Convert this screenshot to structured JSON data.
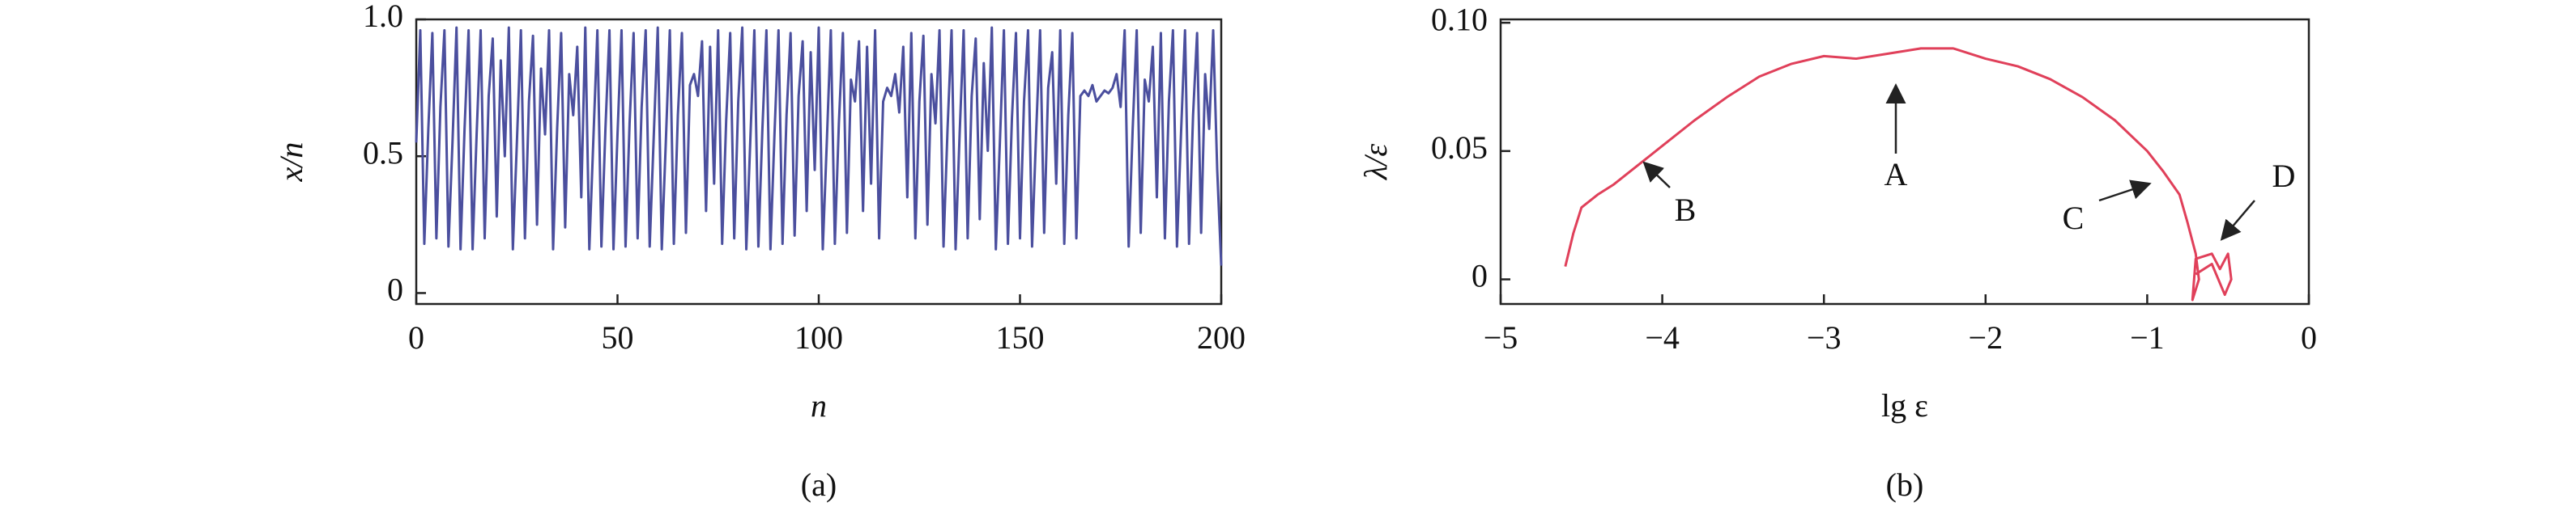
{
  "chart_data": [
    {
      "type": "line",
      "caption": "(a)",
      "xlabel": "n",
      "ylabel": "x/n",
      "color": "#4b4f9e",
      "xlim": [
        0,
        200
      ],
      "ylim": [
        -0.04,
        1.0
      ],
      "xticks": [
        0,
        50,
        100,
        150,
        200
      ],
      "yticks": [
        0,
        0.5,
        {
          "value": 1,
          "label": "1.0"
        }
      ],
      "x": [
        0,
        1,
        2,
        3,
        4,
        5,
        6,
        7,
        8,
        9,
        10,
        11,
        12,
        13,
        14,
        15,
        16,
        17,
        18,
        19,
        20,
        21,
        22,
        23,
        24,
        25,
        26,
        27,
        28,
        29,
        30,
        31,
        32,
        33,
        34,
        35,
        36,
        37,
        38,
        39,
        40,
        41,
        42,
        43,
        44,
        45,
        46,
        47,
        48,
        49,
        50,
        51,
        52,
        53,
        54,
        55,
        56,
        57,
        58,
        59,
        60,
        61,
        62,
        63,
        64,
        65,
        66,
        67,
        68,
        69,
        70,
        71,
        72,
        73,
        74,
        75,
        76,
        77,
        78,
        79,
        80,
        81,
        82,
        83,
        84,
        85,
        86,
        87,
        88,
        89,
        90,
        91,
        92,
        93,
        94,
        95,
        96,
        97,
        98,
        99,
        100,
        101,
        102,
        103,
        104,
        105,
        106,
        107,
        108,
        109,
        110,
        111,
        112,
        113,
        114,
        115,
        116,
        117,
        118,
        119,
        120,
        121,
        122,
        123,
        124,
        125,
        126,
        127,
        128,
        129,
        130,
        131,
        132,
        133,
        134,
        135,
        136,
        137,
        138,
        139,
        140,
        141,
        142,
        143,
        144,
        145,
        146,
        147,
        148,
        149,
        150,
        151,
        152,
        153,
        154,
        155,
        156,
        157,
        158,
        159,
        160,
        161,
        162,
        163,
        164,
        165,
        166,
        167,
        168,
        169,
        170,
        171,
        172,
        173,
        174,
        175,
        176,
        177,
        178,
        179,
        180,
        181,
        182,
        183,
        184,
        185,
        186,
        187,
        188,
        189,
        190,
        191,
        192,
        193,
        194,
        195,
        196,
        197,
        198,
        199,
        200
      ],
      "values": [
        0.55,
        0.96,
        0.18,
        0.6,
        0.95,
        0.2,
        0.68,
        0.96,
        0.17,
        0.55,
        0.97,
        0.16,
        0.6,
        0.96,
        0.16,
        0.58,
        0.96,
        0.2,
        0.72,
        0.93,
        0.28,
        0.85,
        0.5,
        0.97,
        0.16,
        0.55,
        0.96,
        0.2,
        0.7,
        0.94,
        0.25,
        0.82,
        0.58,
        0.96,
        0.16,
        0.6,
        0.95,
        0.24,
        0.8,
        0.65,
        0.9,
        0.35,
        0.97,
        0.16,
        0.56,
        0.96,
        0.17,
        0.6,
        0.96,
        0.16,
        0.58,
        0.96,
        0.17,
        0.62,
        0.95,
        0.2,
        0.68,
        0.96,
        0.17,
        0.57,
        0.97,
        0.16,
        0.55,
        0.96,
        0.18,
        0.65,
        0.95,
        0.22,
        0.76,
        0.8,
        0.72,
        0.92,
        0.3,
        0.9,
        0.4,
        0.96,
        0.18,
        0.63,
        0.95,
        0.2,
        0.7,
        0.97,
        0.16,
        0.56,
        0.96,
        0.17,
        0.6,
        0.96,
        0.16,
        0.58,
        0.96,
        0.18,
        0.65,
        0.95,
        0.21,
        0.72,
        0.92,
        0.3,
        0.88,
        0.45,
        0.97,
        0.16,
        0.55,
        0.96,
        0.18,
        0.62,
        0.95,
        0.22,
        0.78,
        0.7,
        0.92,
        0.3,
        0.9,
        0.4,
        0.96,
        0.2,
        0.7,
        0.75,
        0.72,
        0.8,
        0.66,
        0.9,
        0.35,
        0.95,
        0.2,
        0.7,
        0.94,
        0.25,
        0.8,
        0.62,
        0.96,
        0.17,
        0.6,
        0.96,
        0.16,
        0.58,
        0.96,
        0.2,
        0.72,
        0.93,
        0.27,
        0.84,
        0.52,
        0.97,
        0.16,
        0.55,
        0.96,
        0.18,
        0.64,
        0.95,
        0.2,
        0.7,
        0.96,
        0.17,
        0.58,
        0.96,
        0.22,
        0.75,
        0.88,
        0.4,
        0.96,
        0.18,
        0.65,
        0.95,
        0.2,
        0.72,
        0.74,
        0.72,
        0.76,
        0.7,
        0.72,
        0.74,
        0.73,
        0.75,
        0.8,
        0.68,
        0.96,
        0.17,
        0.6,
        0.96,
        0.22,
        0.78,
        0.7,
        0.9,
        0.35,
        0.95,
        0.2,
        0.7,
        0.96,
        0.17,
        0.58,
        0.96,
        0.18,
        0.65,
        0.95,
        0.22,
        0.8,
        0.6,
        0.96,
        0.45,
        0.1
      ]
    },
    {
      "type": "line",
      "caption": "(b)",
      "xlabel": "lg ε",
      "ylabel": "λ/ε",
      "color": "#e0405a",
      "xlim": [
        -5,
        0
      ],
      "ylim": [
        -0.0096,
        0.1013
      ],
      "xticks": [
        {
          "value": -5,
          "label": "−5"
        },
        {
          "value": -4,
          "label": "−4"
        },
        {
          "value": -3,
          "label": "−3"
        },
        {
          "value": -2,
          "label": "−2"
        },
        {
          "value": -1,
          "label": "−1"
        },
        0
      ],
      "yticks": [
        0,
        0.05,
        {
          "value": 0.1,
          "label": "0.10"
        }
      ],
      "x": [
        -4.6,
        -4.55,
        -4.5,
        -4.4,
        -4.3,
        -4.2,
        -4.0,
        -3.8,
        -3.6,
        -3.4,
        -3.2,
        -3.0,
        -2.8,
        -2.6,
        -2.4,
        -2.2,
        -2.0,
        -1.8,
        -1.6,
        -1.4,
        -1.2,
        -1.0,
        -0.9,
        -0.8,
        -0.75,
        -0.7,
        -0.68,
        -0.72,
        -0.7,
        -0.6,
        -0.55,
        -0.5,
        -0.48,
        -0.52,
        -0.6,
        -0.7
      ],
      "values": [
        0.005,
        0.018,
        0.028,
        0.033,
        0.037,
        0.042,
        0.052,
        0.062,
        0.071,
        0.079,
        0.084,
        0.087,
        0.086,
        0.088,
        0.09,
        0.09,
        0.086,
        0.083,
        0.078,
        0.071,
        0.062,
        0.05,
        0.042,
        0.033,
        0.022,
        0.01,
        0.0,
        -0.008,
        0.008,
        0.01,
        0.004,
        0.01,
        0.0,
        -0.006,
        0.006,
        0.002
      ],
      "annotations": [
        "A",
        "B",
        "C",
        "D"
      ]
    }
  ]
}
